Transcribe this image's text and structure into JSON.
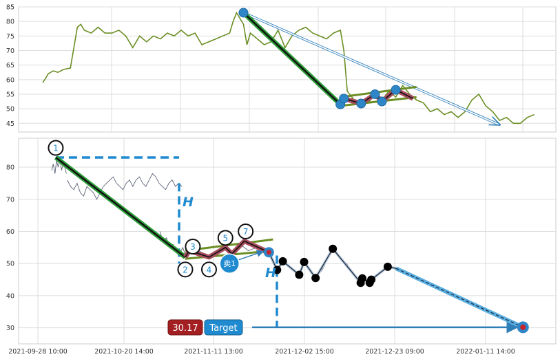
{
  "chart_data": [
    {
      "type": "line",
      "panel": "overview",
      "ylim": [
        42,
        85
      ],
      "yticks": [
        45,
        50,
        55,
        60,
        65,
        70,
        75,
        80,
        85
      ],
      "grid": true,
      "series": [
        {
          "color": "#6b8e23",
          "x": [
            0,
            0.3,
            0.8,
            1.5,
            2.2,
            3.0,
            4.0,
            5.0,
            5.5,
            6.0,
            7.0,
            7.5,
            8.0,
            8.5,
            9.0,
            10,
            11,
            12,
            13,
            14,
            15,
            16,
            17,
            18,
            19,
            20,
            21,
            22,
            23,
            24,
            25,
            26,
            27,
            27.5,
            28,
            29,
            29.5,
            30,
            31,
            32,
            33,
            34,
            35,
            36,
            37,
            38,
            39,
            40,
            41,
            42,
            43,
            43.5,
            44,
            45,
            45.5,
            46,
            47,
            48,
            49,
            50,
            51,
            52,
            53,
            54,
            55,
            56,
            57,
            58,
            59,
            60,
            61,
            62,
            63,
            64,
            65,
            66,
            67,
            68,
            69,
            70,
            71
          ],
          "y": [
            59,
            60,
            62,
            63,
            62.5,
            63.5,
            64,
            78,
            79,
            77,
            76,
            77,
            78,
            77,
            76,
            76,
            77,
            75,
            71,
            75,
            73,
            75,
            74,
            76,
            75,
            77,
            75,
            76,
            72,
            73,
            74,
            75,
            76,
            80,
            83,
            79,
            72,
            76,
            74,
            72,
            73,
            77,
            71,
            75,
            77,
            78,
            76,
            75,
            74,
            76,
            77,
            70,
            56,
            53,
            51,
            53,
            52,
            55,
            53,
            56,
            54,
            58,
            55,
            53,
            52,
            49,
            50,
            48,
            49,
            47,
            49,
            53,
            55,
            51,
            49,
            46,
            47,
            45,
            45,
            47,
            48
          ]
        }
      ],
      "pattern": {
        "down_leg": [
          [
            29,
            83
          ],
          [
            43,
            51.5
          ]
        ],
        "target_line": [
          [
            29,
            83
          ],
          [
            66,
            44.5
          ]
        ],
        "upper_bound": [
          [
            43,
            54
          ],
          [
            54,
            57.5
          ]
        ],
        "lower_bound": [
          [
            43,
            51
          ],
          [
            54,
            54
          ]
        ],
        "zigzag": [
          [
            43,
            51.5
          ],
          [
            43.5,
            53.5
          ],
          [
            46,
            51.8
          ],
          [
            48,
            55
          ],
          [
            49,
            52.5
          ],
          [
            51,
            56.5
          ],
          [
            53.5,
            53.5
          ]
        ],
        "markers": [
          [
            29,
            83
          ],
          [
            43,
            51.5
          ],
          [
            43.5,
            53.5
          ],
          [
            46,
            51.8
          ],
          [
            48,
            55
          ],
          [
            49,
            52.5
          ],
          [
            51,
            56.5
          ]
        ]
      }
    },
    {
      "type": "line",
      "panel": "detail",
      "ylim": [
        25,
        89
      ],
      "yticks": [
        30,
        40,
        50,
        60,
        70,
        80
      ],
      "grid": true,
      "x_tick_labels": [
        "2021-09-28 10:00",
        "2021-10-20 14:00",
        "2021-11-11 13:00",
        "2021-12-02 15:00",
        "2021-12-23 09:00",
        "2022-01-11 14:00"
      ],
      "points": [
        {
          "label": "1",
          "x": 0.5,
          "y": 83
        },
        {
          "label": "2",
          "x": 16.3,
          "y": 52
        },
        {
          "label": "3",
          "x": 16.8,
          "y": 54
        },
        {
          "label": "4",
          "x": 19.2,
          "y": 52
        },
        {
          "label": "5",
          "x": 21.2,
          "y": 55
        },
        {
          "label": "7",
          "x": 23.5,
          "y": 57
        },
        {
          "label": "",
          "x": 26.5,
          "y": 53.5
        }
      ],
      "sell_signal": {
        "label": "卖1",
        "x": 21.7,
        "y": 50
      },
      "height_label": "H",
      "target": {
        "value": "30.17",
        "label": "Target",
        "y": 30.17
      },
      "projection_path": [
        [
          26.5,
          53.5
        ],
        [
          27.5,
          48
        ],
        [
          28.2,
          50.7
        ],
        [
          30.2,
          46.5
        ],
        [
          30.8,
          50.5
        ],
        [
          32.2,
          45.5
        ],
        [
          34.3,
          54.6
        ],
        [
          37.7,
          44
        ],
        [
          37.9,
          45.4
        ],
        [
          38.8,
          44
        ],
        [
          39,
          45
        ],
        [
          41,
          49
        ],
        [
          42,
          48.5
        ]
      ],
      "target_leg": [
        [
          42,
          48.5
        ],
        [
          57.5,
          30.17
        ]
      ],
      "price_lines": [
        {
          "color": "#5a6175",
          "x": [
            0,
            0.2,
            0.4,
            0.6,
            0.8,
            1.0,
            1.2,
            1.4,
            1.6,
            1.8
          ],
          "y": [
            79,
            81,
            78,
            82,
            80,
            83,
            79,
            81,
            80,
            78
          ]
        },
        {
          "color": "#5a6175",
          "x": [
            1.9,
            2.3,
            2.7,
            3.1,
            3.5,
            3.9,
            4.3,
            4.7,
            5.1,
            5.5,
            5.9,
            6.3,
            6.7,
            7.1,
            7.5,
            7.9,
            8.3,
            8.7,
            9.1,
            9.5,
            9.9,
            10.3,
            10.7,
            11.1,
            11.5,
            11.9,
            12.3,
            12.7,
            13.1,
            13.5,
            13.9,
            14.3,
            14.7,
            15.1,
            15.5,
            15.9
          ],
          "y": [
            76,
            74,
            73,
            75,
            72,
            71,
            74,
            73,
            72,
            70,
            72,
            74,
            75,
            76,
            77,
            75,
            74,
            73,
            75,
            76,
            74,
            76,
            77,
            75,
            74,
            76,
            78,
            77,
            75,
            74,
            73,
            75,
            76,
            74,
            75,
            74
          ]
        },
        {
          "color": "#5a6175",
          "x": [
            13.2,
            13.6,
            14.0,
            14.4,
            14.8,
            15.2,
            15.6,
            16.0,
            16.4,
            16.8
          ],
          "y": [
            60,
            57,
            58,
            55,
            56,
            54,
            53,
            55,
            52,
            54
          ]
        },
        {
          "color": "#5a6175",
          "x": [
            17,
            18,
            19,
            20,
            21,
            22,
            23,
            24,
            25,
            26
          ],
          "y": [
            53,
            54,
            52,
            53,
            55,
            53,
            56,
            54,
            55,
            53
          ]
        },
        {
          "color": "#5a6175",
          "x": [
            26.5,
            27.5,
            28.2,
            29,
            30.2,
            30.8,
            31.5,
            32.2,
            33,
            34.3,
            35,
            36,
            37,
            37.7,
            38.5,
            39,
            40,
            41,
            42
          ],
          "y": [
            53.5,
            48,
            50.7,
            49,
            46.5,
            50.5,
            48,
            45.5,
            48,
            54.6,
            52,
            50,
            46,
            44,
            45,
            45,
            47,
            49,
            48.5
          ]
        }
      ]
    }
  ]
}
